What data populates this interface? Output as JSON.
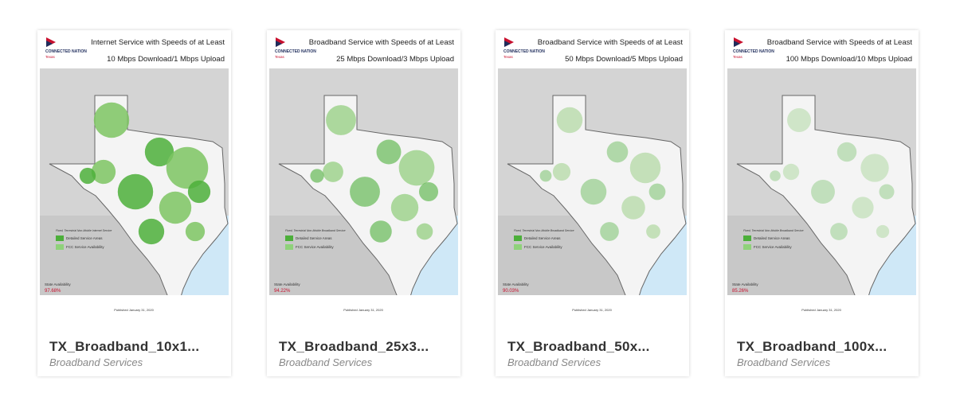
{
  "cards": [
    {
      "title": "TX_Broadband_10x1...",
      "category": "Broadband Services",
      "map": {
        "brand": "CONNECTED NATION",
        "state": "Texas",
        "heading": [
          "Internet Service with Speeds of at Least",
          "10 Mbps Download/1 Mbps Upload"
        ],
        "legend_title": "Fixed, Terrestrial Non-Mobile Internet Service",
        "legend": [
          "Detailed Service Areas",
          "FCC Service Availability"
        ],
        "availability_label": "State Availability",
        "availability": "97.68%",
        "published": "Published January 31, 2020"
      }
    },
    {
      "title": "TX_Broadband_25x3...",
      "category": "Broadband Services",
      "map": {
        "brand": "CONNECTED NATION",
        "state": "Texas",
        "heading": [
          "Broadband Service with Speeds of at Least",
          "25 Mbps Download/3 Mbps Upload"
        ],
        "legend_title": "Fixed, Terrestrial Non-Mobile Broadband Service",
        "legend": [
          "Detailed Service Areas",
          "FCC Service Availability"
        ],
        "availability_label": "State Availability",
        "availability": "94.22%",
        "published": "Published January 31, 2020"
      }
    },
    {
      "title": "TX_Broadband_50x...",
      "category": "Broadband Services",
      "map": {
        "brand": "CONNECTED NATION",
        "state": "Texas",
        "heading": [
          "Broadband Service with Speeds of at Least",
          "50 Mbps Download/5 Mbps Upload"
        ],
        "legend_title": "Fixed, Terrestrial Non-Mobile Broadband Service",
        "legend": [
          "Detailed Service Areas",
          "FCC Service Availability"
        ],
        "availability_label": "State Availability",
        "availability": "90.03%",
        "published": "Published January 31, 2020"
      }
    },
    {
      "title": "TX_Broadband_100x...",
      "category": "Broadband Services",
      "map": {
        "brand": "CONNECTED NATION",
        "state": "Texas",
        "heading": [
          "Broadband Service with Speeds of at Least",
          "100 Mbps Download/10 Mbps Upload"
        ],
        "legend_title": "Fixed, Terrestrial Non-Mobile Broadband Service",
        "legend": [
          "Detailed Service Areas",
          "FCC Service Availability"
        ],
        "availability_label": "State Availability",
        "availability": "85.26%",
        "published": "Published January 31, 2020"
      }
    }
  ]
}
